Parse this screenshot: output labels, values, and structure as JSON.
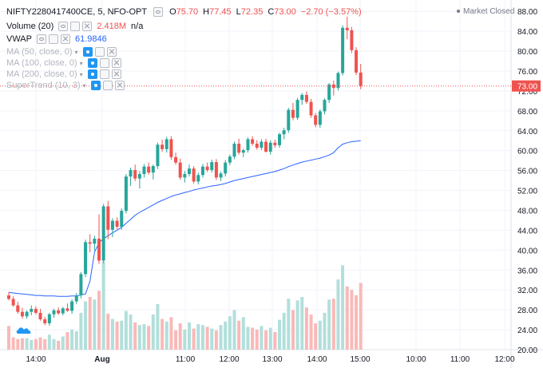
{
  "legend": {
    "symbol": "NIFTY2280417400CE, 5, NFO-OPT",
    "open_label": "O",
    "open": "75.70",
    "high_label": "H",
    "high": "77.45",
    "low_label": "L",
    "low": "72.35",
    "close_label": "C",
    "close": "73.00",
    "change": "−2.70 (−3.57%)",
    "volume": "Volume (20)",
    "volume_value": "2.418M",
    "volume_na": "n/a",
    "vwap": "VWAP",
    "vwap_value": "61.9846",
    "ma50": "MA (50, close, 0)",
    "ma100": "MA (100, close, 0)",
    "ma200": "MA (200, close, 0)",
    "supertrend": "SuperTrend (10, 3)"
  },
  "market_status": "Market Closed",
  "last_price_label": "73.00",
  "colors": {
    "up": "#26a69a",
    "down": "#ef5350",
    "vwap": "#2962ff",
    "vol_up": "#b2dfdb",
    "vol_down": "#f9b9b8"
  },
  "chart_data": {
    "type": "candlestick",
    "y_ticks": [
      "88.00",
      "84.00",
      "80.00",
      "76.00",
      "72.00",
      "68.00",
      "64.00",
      "60.00",
      "56.00",
      "52.00",
      "48.00",
      "44.00",
      "40.00",
      "36.00",
      "32.00",
      "28.00",
      "24.00",
      "20.00"
    ],
    "ylim": [
      20,
      89
    ],
    "x_ticks": [
      "14:00",
      "Aug",
      "11:00",
      "12:00",
      "13:00",
      "14:00",
      "15:00",
      "10:00",
      "11:00",
      "12:00"
    ],
    "last_price": 73.0,
    "candles": [
      [
        30.9,
        31.6,
        29.9,
        30.2
      ],
      [
        30.2,
        30.7,
        28.6,
        28.9
      ],
      [
        28.9,
        29.6,
        27.2,
        27.6
      ],
      [
        27.6,
        28.4,
        26.2,
        26.7
      ],
      [
        26.7,
        27.9,
        26.2,
        27.6
      ],
      [
        27.6,
        28.9,
        26.9,
        28.2
      ],
      [
        28.2,
        28.7,
        27.1,
        27.4
      ],
      [
        27.4,
        28.2,
        25.8,
        26.1
      ],
      [
        26.1,
        26.6,
        24.9,
        25.3
      ],
      [
        25.3,
        27.4,
        24.8,
        27.1
      ],
      [
        27.1,
        28.2,
        26.4,
        27.9
      ],
      [
        27.9,
        28.5,
        27.0,
        27.3
      ],
      [
        27.3,
        28.6,
        26.9,
        28.3
      ],
      [
        28.3,
        29.3,
        27.6,
        27.8
      ],
      [
        27.8,
        30.1,
        27.2,
        29.7
      ],
      [
        29.7,
        31.4,
        29.2,
        30.9
      ],
      [
        30.9,
        35.6,
        30.3,
        35.2
      ],
      [
        35.2,
        42.1,
        34.6,
        41.6
      ],
      [
        41.6,
        43.2,
        39.6,
        41.3
      ],
      [
        41.3,
        42.9,
        39.9,
        42.3
      ],
      [
        42.3,
        47.2,
        37.2,
        37.9
      ],
      [
        37.9,
        49.3,
        37.4,
        48.8
      ],
      [
        48.8,
        49.9,
        42.2,
        44.1
      ],
      [
        44.1,
        46.4,
        42.6,
        45.9
      ],
      [
        45.9,
        46.6,
        44.2,
        44.7
      ],
      [
        44.7,
        48.4,
        44.1,
        47.9
      ],
      [
        47.9,
        55.3,
        47.4,
        54.8
      ],
      [
        54.8,
        56.6,
        52.9,
        56.1
      ],
      [
        56.1,
        57.2,
        53.9,
        54.4
      ],
      [
        54.4,
        55.9,
        52.4,
        55.3
      ],
      [
        55.3,
        57.3,
        54.6,
        56.8
      ],
      [
        56.8,
        57.6,
        55.2,
        55.6
      ],
      [
        55.6,
        57.2,
        54.2,
        56.9
      ],
      [
        56.9,
        61.6,
        56.3,
        61.2
      ],
      [
        61.2,
        62.2,
        59.8,
        60.3
      ],
      [
        60.3,
        62.8,
        59.6,
        62.3
      ],
      [
        62.3,
        62.9,
        58.2,
        58.7
      ],
      [
        58.7,
        59.6,
        57.2,
        57.6
      ],
      [
        57.6,
        58.4,
        54.2,
        54.6
      ],
      [
        54.6,
        55.9,
        53.6,
        55.3
      ],
      [
        55.3,
        57.2,
        54.8,
        56.4
      ],
      [
        56.4,
        56.9,
        53.4,
        53.8
      ],
      [
        53.8,
        55.6,
        53.2,
        55.1
      ],
      [
        55.1,
        57.3,
        54.6,
        56.8
      ],
      [
        56.8,
        57.6,
        55.7,
        56.1
      ],
      [
        56.1,
        58.2,
        55.6,
        57.7
      ],
      [
        57.7,
        58.3,
        54.1,
        54.6
      ],
      [
        54.6,
        55.8,
        53.9,
        55.4
      ],
      [
        55.4,
        58.1,
        54.8,
        57.6
      ],
      [
        57.6,
        59.2,
        57.1,
        58.8
      ],
      [
        58.8,
        61.8,
        58.3,
        61.4
      ],
      [
        61.4,
        62.4,
        59.2,
        59.6
      ],
      [
        59.6,
        60.4,
        58.7,
        60.1
      ],
      [
        60.1,
        62.7,
        59.6,
        62.3
      ],
      [
        62.3,
        62.9,
        61.0,
        61.4
      ],
      [
        61.4,
        62.1,
        60.2,
        60.6
      ],
      [
        60.6,
        62.3,
        60.1,
        61.8
      ],
      [
        61.8,
        62.4,
        59.6,
        59.8
      ],
      [
        59.8,
        62.1,
        59.2,
        61.6
      ],
      [
        61.6,
        62.2,
        60.6,
        61.1
      ],
      [
        61.1,
        63.6,
        60.6,
        63.3
      ],
      [
        63.3,
        64.6,
        62.3,
        64.1
      ],
      [
        64.1,
        68.6,
        63.6,
        68.2
      ],
      [
        68.2,
        69.6,
        66.1,
        66.6
      ],
      [
        66.6,
        70.6,
        66.2,
        70.2
      ],
      [
        70.2,
        71.6,
        69.2,
        71.2
      ],
      [
        71.2,
        71.9,
        69.4,
        69.8
      ],
      [
        69.8,
        70.4,
        66.6,
        67.1
      ],
      [
        67.1,
        67.6,
        64.7,
        65.2
      ],
      [
        65.2,
        68.3,
        64.6,
        67.9
      ],
      [
        67.9,
        70.5,
        67.3,
        70.2
      ],
      [
        70.2,
        73.6,
        69.6,
        73.3
      ],
      [
        73.3,
        74.1,
        71.1,
        72.6
      ],
      [
        72.6,
        75.9,
        72.1,
        75.6
      ],
      [
        75.6,
        85.2,
        75.1,
        84.7
      ],
      [
        84.7,
        86.9,
        82.4,
        84.2
      ],
      [
        84.2,
        84.9,
        79.6,
        80.2
      ],
      [
        80.2,
        80.8,
        75.2,
        75.7
      ],
      [
        75.7,
        77.45,
        72.35,
        73.0
      ]
    ],
    "volume_max": 1.0,
    "volume": [
      0.27,
      0.14,
      0.12,
      0.13,
      0.13,
      0.11,
      0.12,
      0.14,
      0.12,
      0.17,
      0.12,
      0.1,
      0.15,
      0.2,
      0.23,
      0.21,
      0.42,
      0.55,
      0.6,
      0.57,
      0.67,
      1.0,
      0.41,
      0.35,
      0.32,
      0.33,
      0.44,
      0.4,
      0.31,
      0.28,
      0.29,
      0.27,
      0.4,
      0.52,
      0.35,
      0.32,
      0.37,
      0.22,
      0.3,
      0.23,
      0.31,
      0.24,
      0.29,
      0.28,
      0.26,
      0.24,
      0.22,
      0.28,
      0.32,
      0.38,
      0.45,
      0.33,
      0.37,
      0.26,
      0.25,
      0.23,
      0.27,
      0.22,
      0.25,
      0.2,
      0.34,
      0.42,
      0.58,
      0.45,
      0.56,
      0.6,
      0.48,
      0.4,
      0.3,
      0.33,
      0.42,
      0.57,
      0.58,
      0.8,
      0.96,
      0.72,
      0.68,
      0.62,
      0.76
    ],
    "vwap": [
      31.5,
      31.4,
      31.3,
      31.2,
      31.1,
      31.0,
      30.9,
      30.9,
      30.8,
      30.8,
      30.8,
      30.7,
      30.7,
      30.7,
      30.8,
      30.8,
      31.0,
      31.2,
      33.8,
      39.6,
      41.5,
      42.3,
      42.9,
      43.5,
      44.0,
      44.6,
      45.4,
      46.2,
      47.0,
      47.6,
      48.1,
      48.6,
      49.1,
      49.6,
      50.0,
      50.4,
      50.8,
      51.1,
      51.3,
      51.6,
      51.8,
      52.1,
      52.3,
      52.5,
      52.7,
      52.9,
      53.0,
      53.2,
      53.4,
      53.7,
      54.0,
      54.2,
      54.4,
      54.6,
      54.8,
      55.0,
      55.2,
      55.4,
      55.6,
      55.8,
      56.1,
      56.4,
      56.8,
      57.1,
      57.4,
      57.7,
      57.9,
      58.1,
      58.3,
      58.5,
      58.8,
      59.1,
      59.6,
      60.6,
      61.3,
      61.6,
      61.8,
      61.9,
      62.0
    ]
  }
}
